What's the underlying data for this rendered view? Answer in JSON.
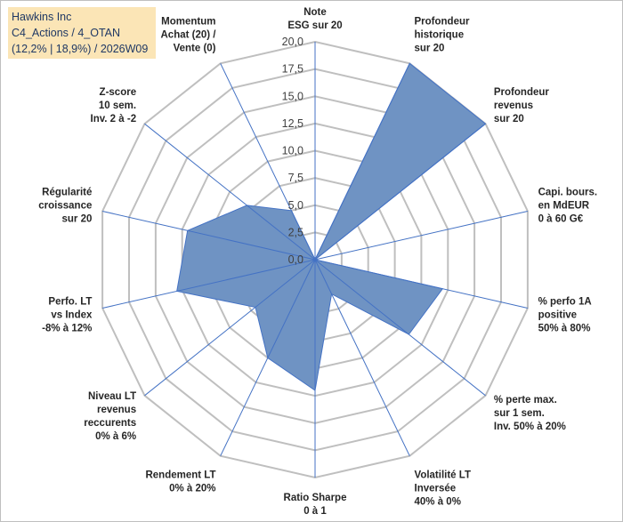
{
  "title_box": {
    "line1": "Hawkins Inc",
    "line2": "C4_Actions / 4_OTAN",
    "line3": "(12,2% | 18,9%) / 2026W09"
  },
  "chart_data": {
    "type": "radar",
    "r_min": 0,
    "r_max": 20,
    "r_step": 2.5,
    "tick_labels": [
      "0,0",
      "2,5",
      "5,0",
      "7,5",
      "10,0",
      "12,5",
      "15,0",
      "17,5",
      "20,0"
    ],
    "grid": true,
    "fill_color": "#6f93c3",
    "line_color": "#4472c4",
    "grid_color": "#bfbfbf",
    "axes": [
      {
        "label": [
          "Note",
          "ESG sur 20"
        ],
        "value": 0
      },
      {
        "label": [
          "Profondeur",
          "historique",
          "sur 20"
        ],
        "value": 20
      },
      {
        "label": [
          "Profondeur",
          "revenus",
          "sur 20"
        ],
        "value": 20
      },
      {
        "label": [
          "Capi. bours.",
          "en MdEUR",
          "0 à 60 G€"
        ],
        "value": 0
      },
      {
        "label": [
          "% perfo 1A",
          "positive",
          "50% à 80%"
        ],
        "value": 12
      },
      {
        "label": [
          "% perte max.",
          "sur 1 sem.",
          "Inv. 50% à 20%"
        ],
        "value": 11
      },
      {
        "label": [
          "Volatilité LT",
          "Inversée",
          "40% à 0%"
        ],
        "value": 3.5
      },
      {
        "label": [
          "Ratio Sharpe",
          "0 à 1"
        ],
        "value": 12
      },
      {
        "label": [
          "Rendement LT",
          "0% à 20%"
        ],
        "value": 10
      },
      {
        "label": [
          "Niveau LT",
          "revenus",
          "reccurents",
          "0% à 6%"
        ],
        "value": 7
      },
      {
        "label": [
          "Perfo. LT",
          "vs Index",
          "-8% à 12%"
        ],
        "value": 13
      },
      {
        "label": [
          "Régularité",
          "croissance",
          "sur 20"
        ],
        "value": 12
      },
      {
        "label": [
          "Z-score",
          "10 sem.",
          "Inv. 2 à -2"
        ],
        "value": 8
      },
      {
        "label": [
          "Momentum",
          "Achat (20) /",
          "Vente (0)"
        ],
        "value": 5
      }
    ]
  }
}
